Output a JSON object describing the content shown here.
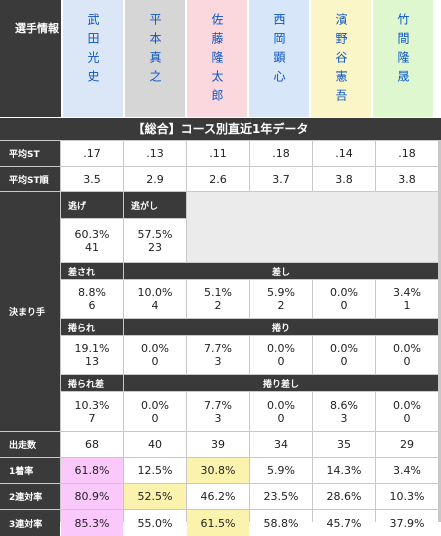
{
  "header": {
    "label": "選手情報",
    "racers": [
      {
        "name": "武田光史",
        "bg": "#dbe7f7"
      },
      {
        "name": "平本真之",
        "bg": "#d6d6d6"
      },
      {
        "name": "佐藤隆太郎",
        "bg": "#fbd7de"
      },
      {
        "name": "西岡顕心",
        "bg": "#d8e6fa"
      },
      {
        "name": "濱野谷憲吾",
        "bg": "#fbf6c7"
      },
      {
        "name": "竹間隆晟",
        "bg": "#def7cf"
      }
    ]
  },
  "section_title": "【総合】コース別直近1年データ",
  "labels": {
    "avg_st": "平均ST",
    "avg_st_rank": "平均ST順",
    "kimarite": "決まり手",
    "starts": "出走数",
    "win1": "1着率",
    "win2": "2連対率",
    "win3": "3連対率"
  },
  "avg_st": [
    ".17",
    ".13",
    ".11",
    ".18",
    ".14",
    ".18"
  ],
  "avg_st_rank": [
    "3.5",
    "2.9",
    "2.6",
    "3.7",
    "3.8",
    "3.8"
  ],
  "kimarite": {
    "nige_label": "逃げ",
    "nigashi_label": "逃がし",
    "nige": {
      "pct": "60.3%",
      "n": "41"
    },
    "nigashi": {
      "pct": "57.5%",
      "n": "23"
    },
    "sasare_label": "差され",
    "sashi_label": "差し",
    "sasare": {
      "pct": "8.8%",
      "n": "6"
    },
    "sashi": [
      {
        "pct": "10.0%",
        "n": "4"
      },
      {
        "pct": "5.1%",
        "n": "2"
      },
      {
        "pct": "5.9%",
        "n": "2"
      },
      {
        "pct": "0.0%",
        "n": "0"
      },
      {
        "pct": "3.4%",
        "n": "1"
      }
    ],
    "makurare_label": "捲られ",
    "makuri_label": "捲り",
    "makurare": {
      "pct": "19.1%",
      "n": "13"
    },
    "makuri": [
      {
        "pct": "0.0%",
        "n": "0"
      },
      {
        "pct": "7.7%",
        "n": "3"
      },
      {
        "pct": "0.0%",
        "n": "0"
      },
      {
        "pct": "0.0%",
        "n": "0"
      },
      {
        "pct": "0.0%",
        "n": "0"
      }
    ],
    "makurarezashi_label": "捲られ差",
    "makurizashi_label": "捲り差し",
    "makurarezashi": {
      "pct": "10.3%",
      "n": "7"
    },
    "makurizashi": [
      {
        "pct": "0.0%",
        "n": "0"
      },
      {
        "pct": "7.7%",
        "n": "3"
      },
      {
        "pct": "0.0%",
        "n": "0"
      },
      {
        "pct": "8.6%",
        "n": "3"
      },
      {
        "pct": "0.0%",
        "n": "0"
      }
    ]
  },
  "starts": [
    "68",
    "40",
    "39",
    "34",
    "35",
    "29"
  ],
  "win1": [
    "61.8%",
    "12.5%",
    "30.8%",
    "5.9%",
    "14.3%",
    "3.4%"
  ],
  "win2": [
    "80.9%",
    "52.5%",
    "46.2%",
    "23.5%",
    "28.6%",
    "10.3%"
  ],
  "win3": [
    "85.3%",
    "55.0%",
    "61.5%",
    "58.8%",
    "45.7%",
    "37.9%"
  ],
  "colors": {
    "highlight_first": "#fbc8fb",
    "highlight_second": "#fbf3ad"
  },
  "highlights": {
    "win1": {
      "0": "first",
      "2": "second"
    },
    "win2": {
      "0": "first",
      "1": "second"
    },
    "win3": {
      "0": "first",
      "2": "second"
    }
  }
}
